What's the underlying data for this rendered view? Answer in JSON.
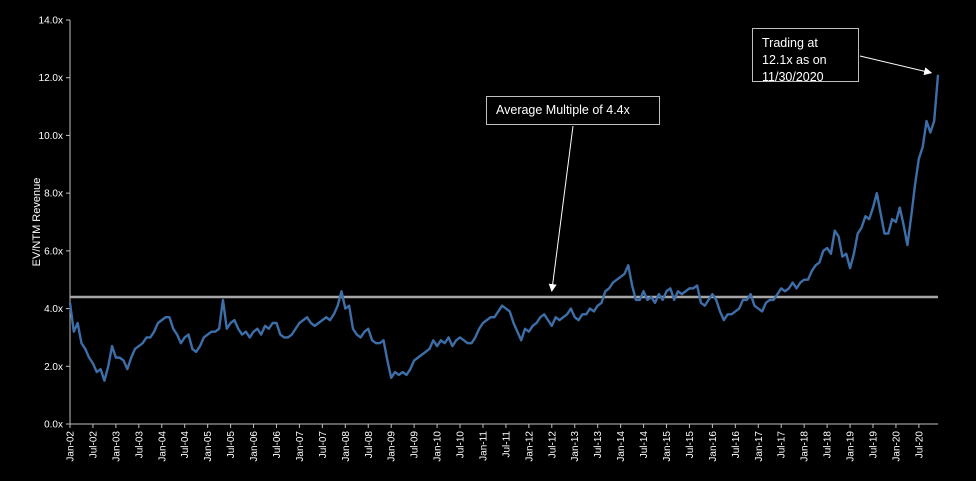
{
  "chart_data": {
    "type": "line",
    "ylabel": "EV/NTM Revenue",
    "ylim": [
      0,
      14
    ],
    "y_ticks": [
      "0.0x",
      "2.0x",
      "4.0x",
      "6.0x",
      "8.0x",
      "10.0x",
      "12.0x",
      "14.0x"
    ],
    "x_start": "Jan-02",
    "x_end": "Nov-20",
    "x_ticks": [
      "Jan-02",
      "Jul-02",
      "Jan-03",
      "Jul-03",
      "Jan-04",
      "Jul-04",
      "Jan-05",
      "Jul-05",
      "Jan-06",
      "Jul-06",
      "Jan-07",
      "Jul-07",
      "Jan-08",
      "Jul-08",
      "Jan-09",
      "Jul-09",
      "Jan-10",
      "Jul-10",
      "Jan-11",
      "Jul-11",
      "Jan-12",
      "Jul-12",
      "Jan-13",
      "Jul-13",
      "Jan-14",
      "Jul-14",
      "Jan-15",
      "Jul-15",
      "Jan-16",
      "Jul-16",
      "Jan-17",
      "Jul-17",
      "Jan-18",
      "Jul-18",
      "Jan-19",
      "Jul-19",
      "Jan-20",
      "Jul-20"
    ],
    "series": [
      {
        "name": "",
        "color": "#3d6ea8",
        "values": [
          4.2,
          3.2,
          3.5,
          2.8,
          2.6,
          2.3,
          2.1,
          1.8,
          1.9,
          1.5,
          2.0,
          2.7,
          2.3,
          2.3,
          2.2,
          1.9,
          2.3,
          2.6,
          2.7,
          2.8,
          3.0,
          3.0,
          3.2,
          3.5,
          3.6,
          3.7,
          3.7,
          3.3,
          3.1,
          2.8,
          3.0,
          3.1,
          2.6,
          2.5,
          2.7,
          3.0,
          3.1,
          3.2,
          3.2,
          3.3,
          4.3,
          3.3,
          3.5,
          3.6,
          3.3,
          3.1,
          3.2,
          3.0,
          3.2,
          3.3,
          3.1,
          3.4,
          3.3,
          3.5,
          3.5,
          3.1,
          3.0,
          3.0,
          3.1,
          3.3,
          3.5,
          3.6,
          3.7,
          3.5,
          3.4,
          3.5,
          3.6,
          3.7,
          3.6,
          3.8,
          4.1,
          4.6,
          4.0,
          4.1,
          3.3,
          3.1,
          3.0,
          3.2,
          3.3,
          2.9,
          2.8,
          2.8,
          2.9,
          2.2,
          1.6,
          1.8,
          1.7,
          1.8,
          1.7,
          1.9,
          2.2,
          2.3,
          2.4,
          2.5,
          2.6,
          2.9,
          2.7,
          2.9,
          2.8,
          3.0,
          2.7,
          2.9,
          3.0,
          2.9,
          2.8,
          2.8,
          3.0,
          3.3,
          3.5,
          3.6,
          3.7,
          3.7,
          3.9,
          4.1,
          4.0,
          3.9,
          3.5,
          3.2,
          2.9,
          3.3,
          3.2,
          3.4,
          3.5,
          3.7,
          3.8,
          3.6,
          3.4,
          3.7,
          3.6,
          3.7,
          3.8,
          4.0,
          3.7,
          3.6,
          3.8,
          3.8,
          4.0,
          3.9,
          4.1,
          4.2,
          4.6,
          4.7,
          4.9,
          5.0,
          5.1,
          5.2,
          5.5,
          4.8,
          4.3,
          4.3,
          4.6,
          4.3,
          4.4,
          4.2,
          4.5,
          4.3,
          4.6,
          4.7,
          4.3,
          4.6,
          4.5,
          4.6,
          4.7,
          4.7,
          4.8,
          4.2,
          4.1,
          4.3,
          4.5,
          4.3,
          3.9,
          3.6,
          3.8,
          3.8,
          3.9,
          4.0,
          4.3,
          4.3,
          4.5,
          4.1,
          4.0,
          3.9,
          4.2,
          4.3,
          4.3,
          4.5,
          4.7,
          4.6,
          4.7,
          4.9,
          4.7,
          4.9,
          5.0,
          5.0,
          5.3,
          5.5,
          5.6,
          6.0,
          6.1,
          5.9,
          6.7,
          6.5,
          5.8,
          5.9,
          5.4,
          5.9,
          6.6,
          6.8,
          7.2,
          7.1,
          7.5,
          8.0,
          7.3,
          6.6,
          6.6,
          7.1,
          7.0,
          7.5,
          6.9,
          6.2,
          7.2,
          8.3,
          9.2,
          9.6,
          10.5,
          10.1,
          10.5,
          12.1
        ]
      }
    ],
    "average_line": {
      "value": 4.4,
      "color": "#a6a6a6"
    },
    "annotations": [
      {
        "text": "Average Multiple of 4.4x",
        "target_index": 126,
        "target_value": 4.4
      },
      {
        "text": "Trading at 12.1x as on 11/30/2020",
        "target_index": 226,
        "target_value": 12.1
      }
    ],
    "grid": false,
    "legend": "none"
  }
}
